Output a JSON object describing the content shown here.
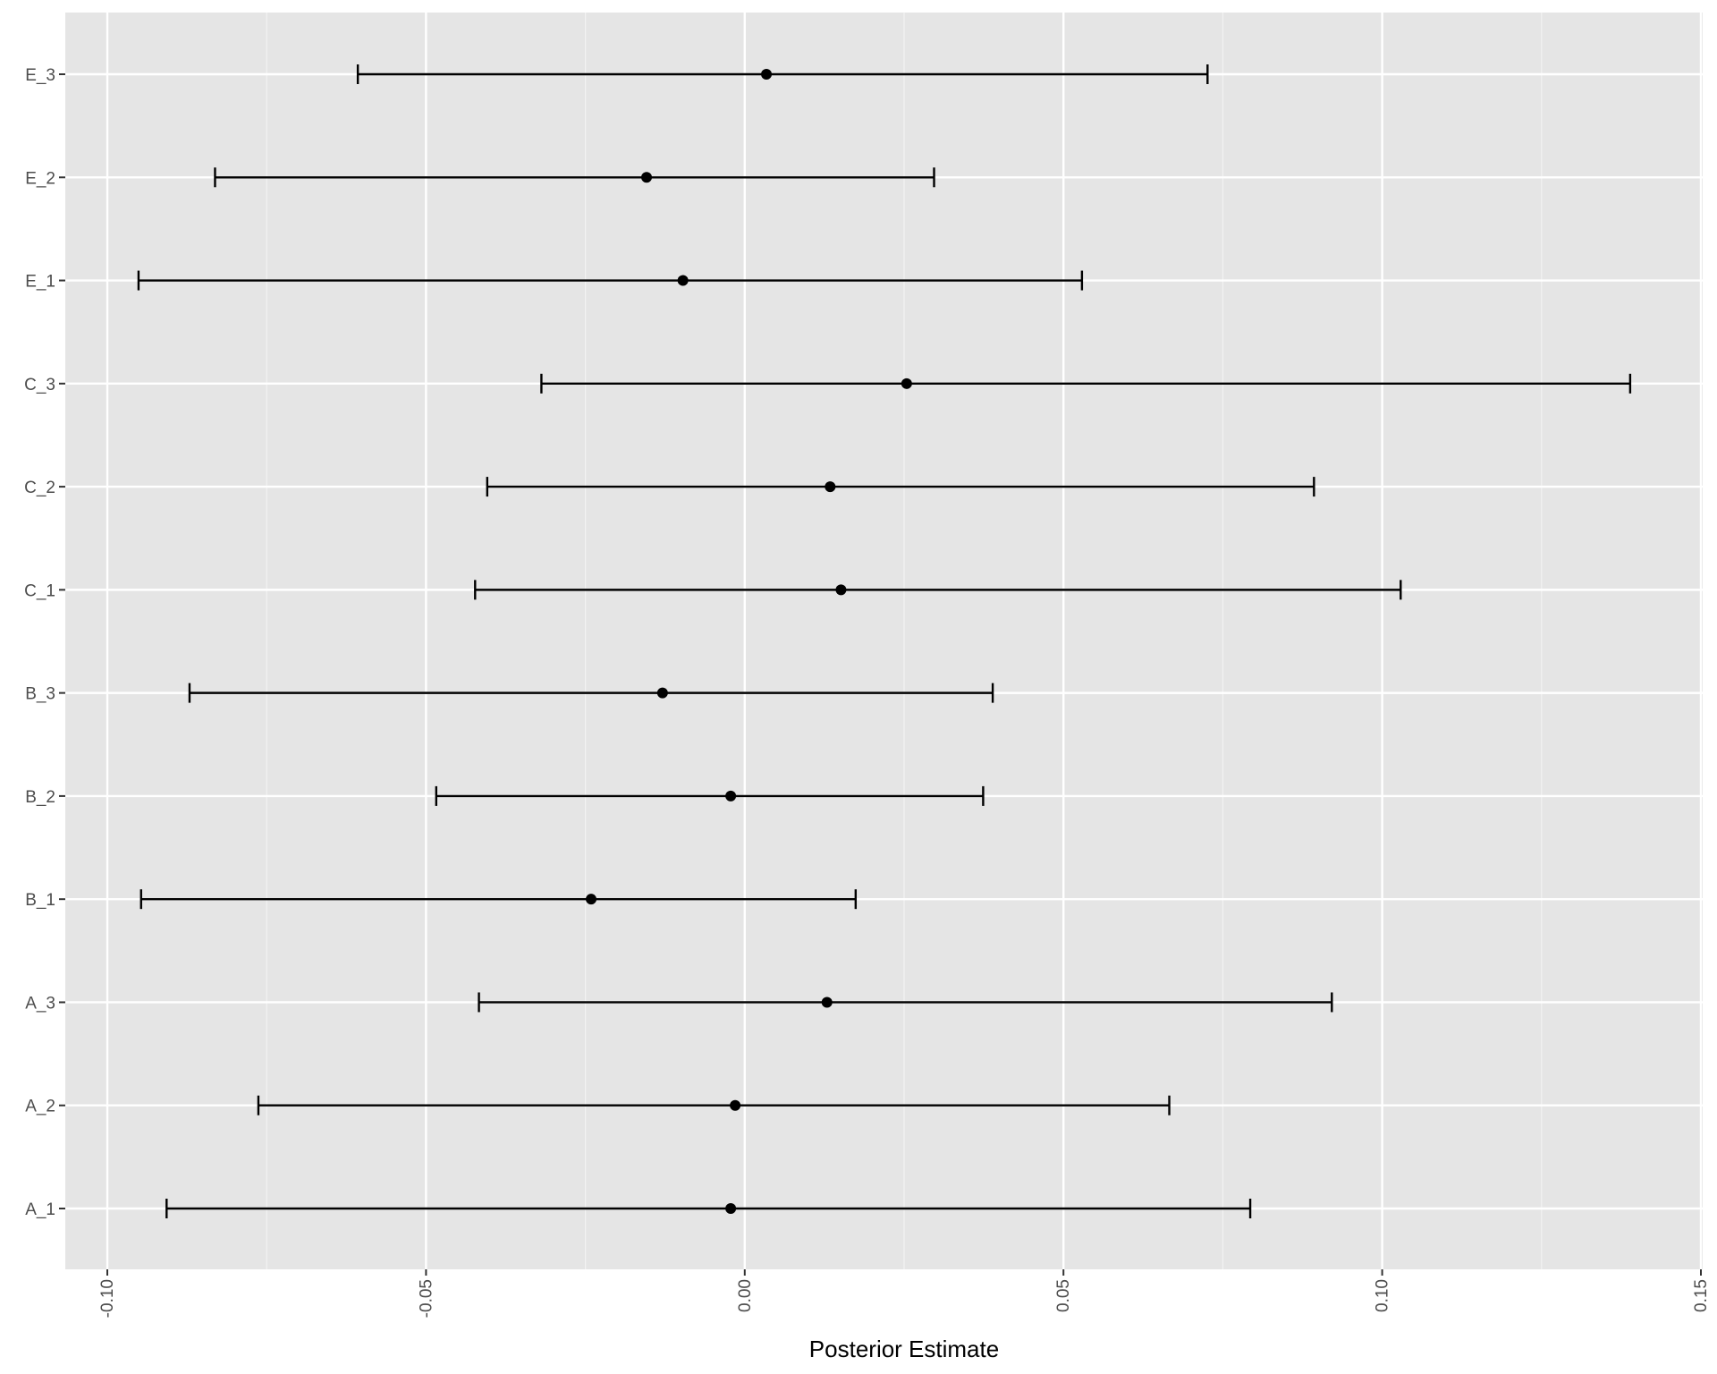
{
  "chart_data": {
    "type": "errorbar",
    "title": "",
    "xlabel": "Posterior Estimate",
    "ylabel": "",
    "xlim": [
      -0.1,
      0.15
    ],
    "x_ticks": [
      -0.1,
      -0.05,
      0.0,
      0.05,
      0.1,
      0.15
    ],
    "x_tick_labels": [
      "-0.10",
      "-0.05",
      "0.00",
      "0.05",
      "0.10",
      "0.15"
    ],
    "grid": true,
    "legend": "none",
    "categories": [
      "A_1",
      "A_2",
      "A_3",
      "B_1",
      "B_2",
      "B_3",
      "C_1",
      "C_2",
      "C_3",
      "E_1",
      "E_2",
      "E_3"
    ],
    "estimates": [
      -0.0022,
      -0.0015,
      0.0129,
      -0.0241,
      -0.0022,
      -0.0129,
      0.0151,
      0.0134,
      0.0254,
      -0.0097,
      -0.0154,
      0.0034
    ],
    "lower": [
      -0.0907,
      -0.0763,
      -0.0417,
      -0.0947,
      -0.0484,
      -0.0871,
      -0.0423,
      -0.0404,
      -0.0319,
      -0.0951,
      -0.0831,
      -0.0607
    ],
    "upper": [
      0.0793,
      0.0666,
      0.0921,
      0.0174,
      0.0374,
      0.0389,
      0.1029,
      0.0893,
      0.1389,
      0.0529,
      0.0297,
      0.0726
    ]
  },
  "colors": {
    "panel_background": "#e5e5e5",
    "grid_major": "#ffffff",
    "grid_minor": "#f2f2f2",
    "mark": "#000000",
    "tick": "#333333"
  }
}
